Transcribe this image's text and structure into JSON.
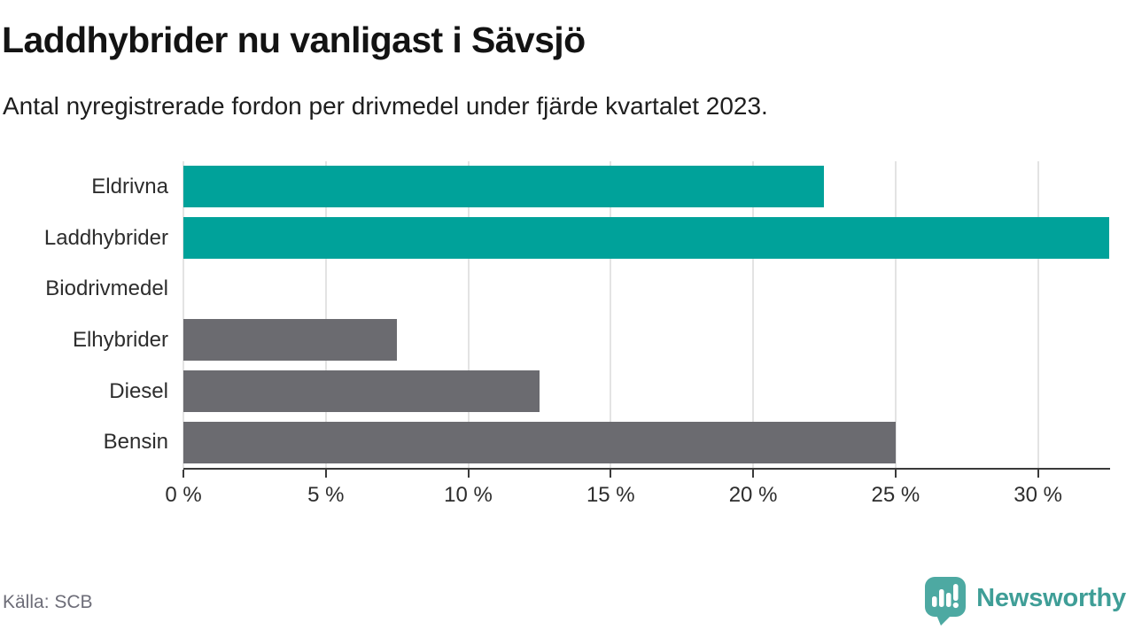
{
  "header": {
    "title": "Laddhybrider nu vanligast i Sävsjö",
    "subtitle": "Antal nyregistrerade fordon per drivmedel under fjärde kvartalet 2023."
  },
  "chart_data": {
    "type": "bar",
    "orientation": "horizontal",
    "title": "Laddhybrider nu vanligast i Sävsjö",
    "subtitle": "Antal nyregistrerade fordon per drivmedel under fjärde kvartalet 2023.",
    "categories": [
      "Eldrivna",
      "Laddhybrider",
      "Biodrivmedel",
      "Elhybrider",
      "Diesel",
      "Bensin"
    ],
    "values": [
      22.5,
      32.5,
      0,
      7.5,
      12.5,
      25
    ],
    "unit": "%",
    "bar_colors": [
      "#00a29a",
      "#00a29a",
      "#6b6b70",
      "#6b6b70",
      "#6b6b70",
      "#6b6b70"
    ],
    "xlim": [
      0,
      32.5
    ],
    "xticks": [
      0,
      5,
      10,
      15,
      20,
      25,
      30
    ],
    "xtick_labels": [
      "0 %",
      "5 %",
      "10 %",
      "15 %",
      "20 %",
      "25 %",
      "30 %"
    ],
    "grid": "vertical-only",
    "legend": "none"
  },
  "footer": {
    "source": "Källa: SCB",
    "brand": "Newsworthy"
  },
  "colors": {
    "accent_teal": "#00a29a",
    "neutral_gray": "#6b6b70",
    "gridline": "#e3e3e3",
    "axis": "#3a3a3a",
    "brand_teal": "#3f9e97",
    "logo_teal": "#4da9a2"
  }
}
